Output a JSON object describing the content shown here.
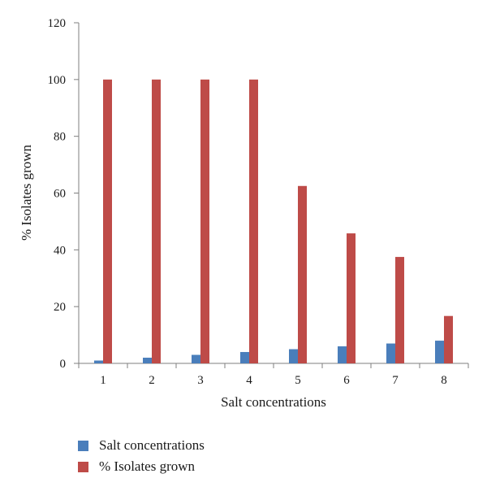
{
  "chart_data": {
    "type": "bar",
    "categories": [
      "1",
      "2",
      "3",
      "4",
      "5",
      "6",
      "7",
      "8"
    ],
    "series": [
      {
        "name": "Salt concentrations",
        "values": [
          1,
          2,
          3,
          4,
          5,
          6,
          7,
          8
        ],
        "color": "#4a7ebb"
      },
      {
        "name": "% Isolates grown",
        "values": [
          100,
          100,
          100,
          100,
          62.5,
          45.8,
          37.5,
          16.7
        ],
        "color": "#be4b48"
      }
    ],
    "xlabel": "Salt concentrations",
    "ylabel": "% Isolates grown",
    "ylim": [
      0,
      120
    ],
    "yticks": [
      "0",
      "20",
      "40",
      "60",
      "80",
      "100",
      "120"
    ],
    "grid": false,
    "legend_position": "bottom-left"
  }
}
